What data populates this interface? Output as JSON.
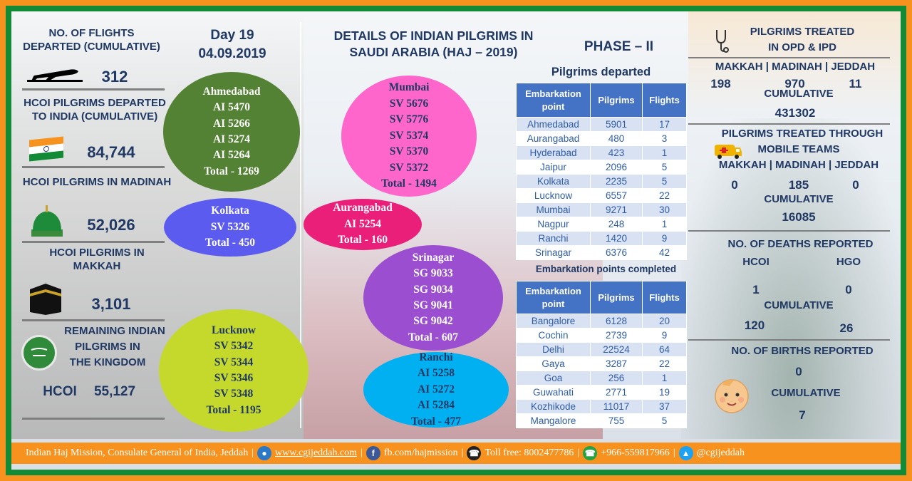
{
  "colors": {
    "orange": "#f7921e",
    "green": "#138a36",
    "navy": "#1f3864",
    "table_head": "#4472c4"
  },
  "left": {
    "flights_title": "NO. OF FLIGHTS DEPARTED (CUMULATIVE)",
    "flights_value": "312",
    "hcoi_departed_title": "HCOI PILGRIMS DEPARTED TO INDIA (CUMULATIVE)",
    "hcoi_departed_value": "84,744",
    "madinah_title": "HCOI PILGRIMS IN MADINAH",
    "madinah_value": "52,026",
    "makkah_title": "HCOI PILGRIMS IN MAKKAH",
    "makkah_value": "3,101",
    "remaining_title_1": "REMAINING INDIAN",
    "remaining_title_2": "PILGRIMS IN",
    "remaining_title_3": "THE KINGDOM",
    "remaining_label": "HCOI",
    "remaining_value": "55,127"
  },
  "day": {
    "label": "Day 19",
    "date": "04.09.2019"
  },
  "bubbles": {
    "ahmedabad": {
      "city": "Ahmedabad",
      "flights": [
        "AI 5470",
        "AI 5266",
        "AI 5274",
        "AI 5264"
      ],
      "total": "Total - 1269"
    },
    "kolkata": {
      "city": "Kolkata",
      "flights": [
        "SV 5326"
      ],
      "total": "Total - 450"
    },
    "lucknow": {
      "city": "Lucknow",
      "flights": [
        "SV 5342",
        "SV 5344",
        "SV 5346",
        "SV 5348"
      ],
      "total": "Total - 1195"
    },
    "mumbai": {
      "city": "Mumbai",
      "flights": [
        "SV 5676",
        "SV 5776",
        "SV 5374",
        "SV 5370",
        "SV 5372"
      ],
      "total": "Total - 1494"
    },
    "aurangabad": {
      "city": "Aurangabad",
      "flights": [
        "AI 5254"
      ],
      "total": "Total - 160"
    },
    "srinagar": {
      "city": "Srinagar",
      "flights": [
        "SG 9033",
        "SG 9034",
        "SG 9041",
        "SG 9042"
      ],
      "total": "Total - 607"
    },
    "ranchi": {
      "city": "Ranchi",
      "flights": [
        "AI 5258",
        "AI 5272",
        "AI 5284"
      ],
      "total": "Total - 477"
    }
  },
  "center": {
    "title_1": "DETAILS OF INDIAN PILGRIMS IN",
    "title_2": "SAUDI ARABIA (HAJ – 2019)",
    "phase": "PHASE – II",
    "departed_heading": "Pilgrims departed",
    "completed_heading": "Embarkation points completed",
    "headers": [
      "Embarkation point",
      "Pilgrims",
      "Flights"
    ],
    "departed_rows": [
      [
        "Ahmedabad",
        "5901",
        "17"
      ],
      [
        "Aurangabad",
        "480",
        "3"
      ],
      [
        "Hyderabad",
        "423",
        "1"
      ],
      [
        "Jaipur",
        "2096",
        "5"
      ],
      [
        "Kolkata",
        "2235",
        "5"
      ],
      [
        "Lucknow",
        "6557",
        "22"
      ],
      [
        "Mumbai",
        "9271",
        "30"
      ],
      [
        "Nagpur",
        "248",
        "1"
      ],
      [
        "Ranchi",
        "1420",
        "9"
      ],
      [
        "Srinagar",
        "6376",
        "42"
      ]
    ],
    "completed_rows": [
      [
        "Bangalore",
        "6128",
        "20"
      ],
      [
        "Cochin",
        "2739",
        "9"
      ],
      [
        "Delhi",
        "22524",
        "64"
      ],
      [
        "Gaya",
        "3287",
        "22"
      ],
      [
        "Goa",
        "256",
        "1"
      ],
      [
        "Guwahati",
        "2771",
        "19"
      ],
      [
        "Kozhikode",
        "11017",
        "37"
      ],
      [
        "Mangalore",
        "755",
        "5"
      ]
    ]
  },
  "right": {
    "opd_title_1": "PILGRIMS TREATED",
    "opd_title_2": "IN OPD & IPD",
    "cities": "MAKKAH | MADINAH | JEDDAH",
    "opd_makkah": "198",
    "opd_madinah": "970",
    "opd_jeddah": "11",
    "cumulative_label": "CUMULATIVE",
    "opd_cumulative": "431302",
    "mobile_title_1": "PILGRIMS TREATED THROUGH",
    "mobile_title_2": "MOBILE TEAMS",
    "mobile_makkah": "0",
    "mobile_madinah": "185",
    "mobile_jeddah": "0",
    "mobile_cumulative": "16085",
    "deaths_title": "NO. OF DEATHS REPORTED",
    "deaths_hcoi_label": "HCOI",
    "deaths_hgo_label": "HGO",
    "deaths_hcoi": "1",
    "deaths_hgo": "0",
    "deaths_cum_hcoi": "120",
    "deaths_cum_hgo": "26",
    "births_title": "NO. OF BIRTHS REPORTED",
    "births_value": "0",
    "births_cumulative": "7"
  },
  "footer": {
    "mission": "Indian Haj Mission, Consulate General of India, Jeddah",
    "website": "www.cgijeddah.com",
    "facebook": "fb.com/hajmission",
    "tollfree": "Toll free: 8002477786",
    "whatsapp": "+966-559817966",
    "twitter": "@cgijeddah"
  }
}
